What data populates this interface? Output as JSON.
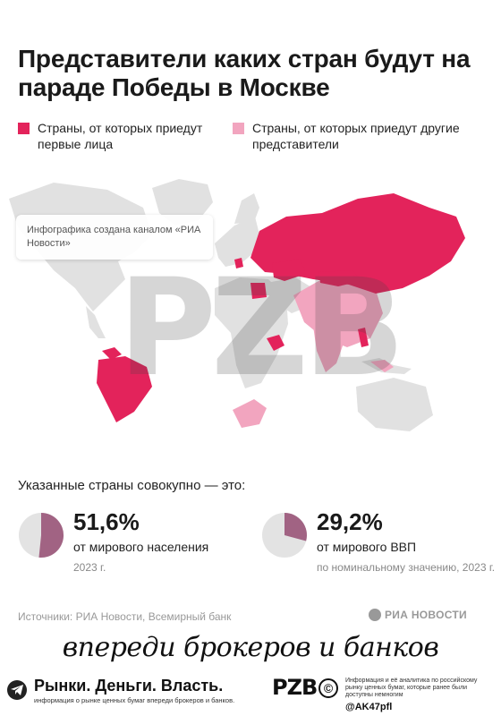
{
  "title": "Представители каких стран будут на параде Победы в Москве",
  "legend": {
    "first_leaders": "Страны, от которых приедут первые лица",
    "other_reps": "Страны, от которых приедут другие представители",
    "colors": {
      "first_leaders": "#e3235b",
      "other_reps": "#f2a5bf",
      "land": "#e1e1e1"
    }
  },
  "map_credit": "Инфографика создана каналом «РИА Новости»",
  "watermark": "РZВ",
  "stats": {
    "heading": "Указанные страны совокупно — это:",
    "population": {
      "value": "51,6%",
      "fraction": 0.516,
      "label": "от мирового населения",
      "note": "2023 г."
    },
    "gdp": {
      "value": "29,2%",
      "fraction": 0.292,
      "label": "от мирового ВВП",
      "note": "по номинальному значению, 2023 г."
    }
  },
  "sources": "Источники: РИА Новости, Всемирный банк",
  "ria_logo": "РИА НОВОСТИ",
  "slogan": "впереди брокеров и банков",
  "footer": {
    "brand": "Рынки. Деньги. Власть.",
    "brand_sub": "информация о рынке ценных бумаг впереди брокеров и банков.",
    "logo_text": "РZВ",
    "copyright": "©",
    "info": "Информация и её аналитика по российскому рынку ценных бумаг, которые ранее были доступны немногим",
    "handle": "@AK47pfl"
  }
}
